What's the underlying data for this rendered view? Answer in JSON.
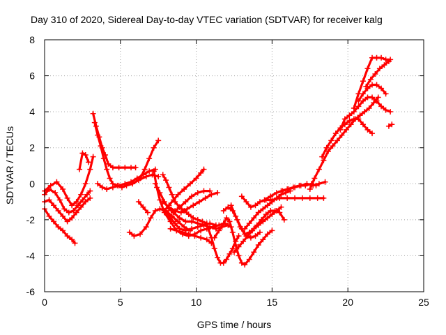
{
  "chart_data": {
    "type": "scatter",
    "title": "Day 310 of 2020, Sidereal Day-to-day VTEC variation (SDTVAR) for receiver kalg",
    "xlabel": "GPS time / hours",
    "ylabel": "SDTVAR / TECUs",
    "xlim": [
      0,
      25
    ],
    "ylim": [
      -6,
      8
    ],
    "xticks": [
      "0",
      "5",
      "10",
      "15",
      "20",
      "25"
    ],
    "yticks": [
      "-6",
      "-4",
      "-2",
      "0",
      "2",
      "4",
      "6",
      "8"
    ],
    "grid": true,
    "marker": "plus",
    "series_color": "#ff0000",
    "tracks": [
      [
        [
          0.0,
          -0.4
        ],
        [
          0.4,
          -0.1
        ],
        [
          0.8,
          0.1
        ],
        [
          1.2,
          -0.3
        ],
        [
          1.5,
          -0.8
        ],
        [
          1.8,
          -1.2
        ],
        [
          2.1,
          -1.0
        ],
        [
          2.4,
          -0.6
        ],
        [
          2.7,
          0.0
        ],
        [
          3.0,
          0.8
        ],
        [
          3.2,
          1.5
        ]
      ],
      [
        [
          0.0,
          -0.6
        ],
        [
          0.3,
          -0.3
        ],
        [
          0.7,
          -0.5
        ],
        [
          1.0,
          -0.9
        ],
        [
          1.3,
          -1.4
        ],
        [
          1.6,
          -1.6
        ],
        [
          1.9,
          -1.5
        ],
        [
          2.2,
          -1.2
        ],
        [
          2.5,
          -0.9
        ],
        [
          2.8,
          -0.6
        ],
        [
          3.0,
          -0.4
        ]
      ],
      [
        [
          0.0,
          -1.0
        ],
        [
          0.3,
          -0.9
        ],
        [
          0.6,
          -1.2
        ],
        [
          0.9,
          -1.5
        ],
        [
          1.2,
          -1.8
        ],
        [
          1.5,
          -2.1
        ],
        [
          1.8,
          -1.9
        ],
        [
          2.1,
          -1.6
        ],
        [
          2.4,
          -1.3
        ],
        [
          2.7,
          -1.0
        ],
        [
          3.0,
          -0.8
        ]
      ],
      [
        [
          0.0,
          -1.4
        ],
        [
          0.3,
          -1.8
        ],
        [
          0.6,
          -2.1
        ],
        [
          0.9,
          -2.4
        ],
        [
          1.2,
          -2.6
        ],
        [
          1.5,
          -2.9
        ],
        [
          1.8,
          -3.1
        ],
        [
          2.0,
          -3.3
        ]
      ],
      [
        [
          2.3,
          0.8
        ],
        [
          2.5,
          1.7
        ],
        [
          2.7,
          1.6
        ],
        [
          2.9,
          1.2
        ]
      ],
      [
        [
          3.2,
          3.9
        ],
        [
          3.4,
          3.2
        ],
        [
          3.6,
          2.6
        ],
        [
          3.8,
          2.0
        ],
        [
          4.0,
          1.6
        ],
        [
          4.2,
          1.1
        ],
        [
          4.5,
          0.9
        ],
        [
          4.9,
          0.9
        ],
        [
          5.3,
          0.9
        ],
        [
          5.7,
          0.9
        ],
        [
          6.0,
          0.9
        ]
      ],
      [
        [
          3.3,
          3.4
        ],
        [
          3.5,
          2.7
        ],
        [
          3.7,
          2.1
        ],
        [
          3.9,
          1.4
        ],
        [
          4.1,
          0.8
        ],
        [
          4.3,
          0.3
        ],
        [
          4.5,
          0.0
        ],
        [
          4.8,
          -0.1
        ],
        [
          5.1,
          -0.2
        ],
        [
          5.4,
          -0.1
        ],
        [
          5.8,
          0.0
        ],
        [
          6.2,
          0.2
        ],
        [
          6.7,
          0.4
        ],
        [
          7.1,
          0.5
        ],
        [
          7.5,
          0.4
        ]
      ],
      [
        [
          3.5,
          0.0
        ],
        [
          3.8,
          -0.2
        ],
        [
          4.1,
          -0.3
        ],
        [
          4.5,
          -0.2
        ],
        [
          4.9,
          -0.1
        ],
        [
          5.3,
          0.0
        ],
        [
          5.7,
          0.1
        ],
        [
          6.1,
          0.3
        ],
        [
          6.5,
          0.5
        ],
        [
          6.9,
          0.7
        ],
        [
          7.3,
          0.8
        ]
      ],
      [
        [
          5.6,
          -2.7
        ],
        [
          5.9,
          -2.9
        ],
        [
          6.3,
          -2.8
        ],
        [
          6.7,
          -2.4
        ],
        [
          7.0,
          -1.9
        ],
        [
          7.3,
          -1.5
        ],
        [
          7.6,
          -1.4
        ],
        [
          8.0,
          -1.5
        ],
        [
          8.4,
          -1.8
        ],
        [
          8.8,
          -2.1
        ],
        [
          9.2,
          -2.4
        ],
        [
          9.6,
          -2.6
        ]
      ],
      [
        [
          6.2,
          -1.0
        ],
        [
          6.5,
          -1.3
        ],
        [
          6.8,
          -1.6
        ]
      ],
      [
        [
          6.3,
          0.3
        ],
        [
          6.6,
          0.8
        ],
        [
          6.9,
          1.4
        ],
        [
          7.2,
          2.0
        ],
        [
          7.5,
          2.4
        ]
      ],
      [
        [
          7.2,
          0.7
        ],
        [
          7.4,
          -0.2
        ],
        [
          7.6,
          -0.9
        ],
        [
          7.9,
          -1.6
        ],
        [
          8.3,
          -2.1
        ],
        [
          8.7,
          -2.6
        ],
        [
          9.1,
          -2.8
        ],
        [
          9.5,
          -2.9
        ],
        [
          9.9,
          -2.8
        ],
        [
          10.3,
          -2.6
        ],
        [
          10.7,
          -2.5
        ],
        [
          11.1,
          -2.4
        ],
        [
          11.5,
          -2.3
        ],
        [
          11.9,
          -2.2
        ],
        [
          12.3,
          -2.4
        ]
      ],
      [
        [
          7.3,
          0.0
        ],
        [
          7.6,
          -0.5
        ],
        [
          7.9,
          -1.0
        ],
        [
          8.2,
          -1.4
        ],
        [
          8.5,
          -1.6
        ],
        [
          8.9,
          -1.9
        ],
        [
          9.3,
          -2.1
        ],
        [
          9.7,
          -2.1
        ],
        [
          10.1,
          -2.2
        ],
        [
          10.5,
          -2.3
        ],
        [
          10.9,
          -2.4
        ],
        [
          11.3,
          -2.5
        ],
        [
          11.7,
          -2.4
        ],
        [
          12.1,
          -2.3
        ]
      ],
      [
        [
          7.8,
          0.5
        ],
        [
          8.0,
          0.2
        ],
        [
          8.2,
          -0.2
        ],
        [
          8.4,
          -0.6
        ],
        [
          8.6,
          -1.0
        ],
        [
          8.9,
          -1.3
        ],
        [
          9.2,
          -1.5
        ],
        [
          9.5,
          -1.7
        ],
        [
          9.8,
          -1.9
        ],
        [
          10.1,
          -2.0
        ],
        [
          10.4,
          -2.1
        ],
        [
          10.7,
          -2.2
        ]
      ],
      [
        [
          8.0,
          -1.5
        ],
        [
          8.3,
          -1.9
        ],
        [
          8.6,
          -2.2
        ],
        [
          8.9,
          -2.5
        ],
        [
          9.3,
          -2.6
        ],
        [
          9.7,
          -2.5
        ],
        [
          10.1,
          -2.4
        ],
        [
          10.5,
          -2.3
        ],
        [
          10.9,
          -2.2
        ],
        [
          11.3,
          -2.3
        ]
      ],
      [
        [
          7.9,
          -1.5
        ],
        [
          8.2,
          -1.2
        ],
        [
          8.5,
          -0.9
        ],
        [
          8.8,
          -0.6
        ],
        [
          9.2,
          -0.3
        ],
        [
          9.6,
          0.0
        ],
        [
          10.0,
          0.3
        ],
        [
          10.3,
          0.6
        ],
        [
          10.5,
          0.8
        ]
      ],
      [
        [
          7.8,
          -1.0
        ],
        [
          8.2,
          -1.3
        ],
        [
          8.6,
          -1.5
        ],
        [
          9.0,
          -1.6
        ],
        [
          9.4,
          -1.4
        ],
        [
          9.8,
          -1.2
        ],
        [
          10.2,
          -1.0
        ],
        [
          10.6,
          -0.8
        ],
        [
          11.0,
          -0.6
        ],
        [
          11.4,
          -0.5
        ]
      ],
      [
        [
          8.5,
          -1.6
        ],
        [
          8.9,
          -1.3
        ],
        [
          9.3,
          -1.0
        ],
        [
          9.7,
          -0.7
        ],
        [
          10.1,
          -0.5
        ],
        [
          10.5,
          -0.4
        ],
        [
          10.9,
          -0.4
        ]
      ],
      [
        [
          8.3,
          -2.5
        ],
        [
          8.7,
          -2.6
        ],
        [
          9.1,
          -2.7
        ],
        [
          9.5,
          -2.8
        ],
        [
          9.9,
          -2.9
        ],
        [
          10.3,
          -3.0
        ],
        [
          10.7,
          -3.1
        ],
        [
          11.0,
          -3.3
        ]
      ],
      [
        [
          10.8,
          -2.5
        ],
        [
          11.0,
          -3.0
        ],
        [
          11.2,
          -3.6
        ],
        [
          11.4,
          -4.1
        ],
        [
          11.6,
          -4.4
        ],
        [
          11.8,
          -4.4
        ],
        [
          12.0,
          -4.2
        ],
        [
          12.2,
          -3.9
        ],
        [
          12.4,
          -3.6
        ],
        [
          12.6,
          -3.2
        ],
        [
          12.8,
          -2.9
        ]
      ],
      [
        [
          11.8,
          -1.5
        ],
        [
          12.1,
          -1.3
        ],
        [
          12.4,
          -1.5
        ],
        [
          12.7,
          -2.0
        ],
        [
          13.0,
          -2.5
        ],
        [
          13.3,
          -2.9
        ],
        [
          13.6,
          -3.0
        ],
        [
          13.9,
          -2.9
        ],
        [
          14.2,
          -2.7
        ]
      ],
      [
        [
          11.2,
          -3.0
        ],
        [
          11.5,
          -2.6
        ],
        [
          11.8,
          -2.2
        ],
        [
          12.0,
          -1.9
        ],
        [
          12.2,
          -2.1
        ],
        [
          12.4,
          -2.7
        ],
        [
          12.6,
          -3.4
        ],
        [
          12.8,
          -4.0
        ],
        [
          13.0,
          -4.4
        ],
        [
          13.2,
          -4.5
        ],
        [
          13.5,
          -4.2
        ],
        [
          13.8,
          -3.8
        ],
        [
          14.1,
          -3.4
        ],
        [
          14.4,
          -3.1
        ],
        [
          14.7,
          -2.8
        ],
        [
          15.0,
          -2.6
        ]
      ],
      [
        [
          12.3,
          -1.2
        ],
        [
          12.6,
          -1.8
        ],
        [
          12.9,
          -2.4
        ],
        [
          13.2,
          -2.8
        ],
        [
          13.5,
          -2.7
        ],
        [
          13.8,
          -2.5
        ],
        [
          14.1,
          -2.3
        ],
        [
          14.4,
          -2.1
        ],
        [
          14.7,
          -1.9
        ],
        [
          15.0,
          -1.7
        ],
        [
          15.3,
          -1.5
        ],
        [
          15.6,
          -1.3
        ]
      ],
      [
        [
          12.5,
          -3.8
        ],
        [
          12.8,
          -3.5
        ],
        [
          13.1,
          -3.2
        ],
        [
          13.4,
          -2.9
        ],
        [
          13.7,
          -2.6
        ],
        [
          14.0,
          -2.3
        ],
        [
          14.3,
          -2.0
        ],
        [
          14.6,
          -1.7
        ],
        [
          14.9,
          -1.5
        ],
        [
          15.2,
          -1.5
        ],
        [
          15.5,
          -1.6
        ],
        [
          15.8,
          -2.0
        ]
      ],
      [
        [
          13.2,
          -2.5
        ],
        [
          13.5,
          -2.2
        ],
        [
          13.8,
          -1.9
        ],
        [
          14.1,
          -1.6
        ],
        [
          14.4,
          -1.4
        ],
        [
          14.7,
          -1.2
        ],
        [
          15.0,
          -1.0
        ],
        [
          15.3,
          -0.8
        ],
        [
          15.6,
          -0.6
        ],
        [
          15.9,
          -0.5
        ],
        [
          16.2,
          -0.4
        ]
      ],
      [
        [
          13.0,
          -0.7
        ],
        [
          13.3,
          -1.0
        ],
        [
          13.6,
          -1.3
        ],
        [
          13.9,
          -1.2
        ],
        [
          14.2,
          -1.0
        ],
        [
          14.6,
          -0.9
        ],
        [
          15.0,
          -0.9
        ],
        [
          15.5,
          -0.8
        ],
        [
          16.0,
          -0.8
        ],
        [
          16.5,
          -0.8
        ],
        [
          17.0,
          -0.8
        ],
        [
          17.5,
          -0.8
        ],
        [
          18.0,
          -0.8
        ],
        [
          18.4,
          -0.8
        ]
      ],
      [
        [
          14.5,
          -0.9
        ],
        [
          14.9,
          -0.7
        ],
        [
          15.3,
          -0.5
        ],
        [
          15.7,
          -0.4
        ],
        [
          16.1,
          -0.3
        ],
        [
          16.5,
          -0.2
        ],
        [
          16.9,
          -0.1
        ],
        [
          17.3,
          0.0
        ],
        [
          17.7,
          -0.1
        ],
        [
          18.1,
          0.0
        ],
        [
          18.5,
          0.1
        ]
      ],
      [
        [
          15.6,
          -0.4
        ],
        [
          16.0,
          -0.3
        ],
        [
          16.4,
          -0.2
        ],
        [
          16.8,
          -0.1
        ],
        [
          17.2,
          -0.1
        ],
        [
          17.6,
          0.0
        ],
        [
          17.9,
          -0.1
        ]
      ],
      [
        [
          17.5,
          -0.3
        ],
        [
          17.8,
          0.3
        ],
        [
          18.1,
          0.8
        ],
        [
          18.4,
          1.3
        ],
        [
          18.7,
          1.8
        ],
        [
          19.0,
          2.1
        ],
        [
          19.3,
          2.4
        ],
        [
          19.6,
          2.7
        ],
        [
          19.9,
          3.0
        ],
        [
          20.2,
          3.3
        ],
        [
          20.5,
          3.6
        ],
        [
          20.8,
          3.8
        ],
        [
          21.1,
          4.0
        ],
        [
          21.4,
          4.2
        ],
        [
          21.7,
          4.5
        ],
        [
          22.0,
          4.8
        ]
      ],
      [
        [
          18.3,
          1.5
        ],
        [
          18.6,
          2.0
        ],
        [
          18.9,
          2.4
        ],
        [
          19.2,
          2.8
        ],
        [
          19.5,
          3.1
        ],
        [
          19.8,
          3.3
        ],
        [
          20.1,
          3.5
        ],
        [
          20.4,
          3.6
        ],
        [
          20.7,
          3.6
        ],
        [
          21.0,
          3.3
        ],
        [
          21.3,
          3.0
        ],
        [
          21.6,
          2.8
        ]
      ],
      [
        [
          19.5,
          3.0
        ],
        [
          19.8,
          3.6
        ],
        [
          20.1,
          3.8
        ],
        [
          20.4,
          4.0
        ],
        [
          20.7,
          4.3
        ],
        [
          21.0,
          4.6
        ],
        [
          21.3,
          4.8
        ],
        [
          21.6,
          4.8
        ],
        [
          21.9,
          4.6
        ],
        [
          22.2,
          4.3
        ],
        [
          22.5,
          4.1
        ],
        [
          22.8,
          4.0
        ]
      ],
      [
        [
          20.7,
          4.6
        ],
        [
          21.0,
          5.0
        ],
        [
          21.3,
          5.3
        ],
        [
          21.6,
          5.5
        ],
        [
          21.9,
          5.5
        ],
        [
          22.2,
          5.3
        ],
        [
          22.5,
          5.0
        ]
      ],
      [
        [
          20.4,
          4.2
        ],
        [
          20.7,
          5.0
        ],
        [
          21.0,
          5.7
        ],
        [
          21.3,
          6.4
        ],
        [
          21.6,
          7.0
        ],
        [
          21.9,
          7.0
        ],
        [
          22.2,
          7.0
        ],
        [
          22.5,
          6.9
        ],
        [
          22.8,
          6.9
        ]
      ],
      [
        [
          21.2,
          5.4
        ],
        [
          21.5,
          5.8
        ],
        [
          21.8,
          6.1
        ],
        [
          22.1,
          6.4
        ],
        [
          22.4,
          6.6
        ],
        [
          22.7,
          6.8
        ]
      ],
      [
        [
          22.7,
          3.2
        ],
        [
          22.9,
          3.3
        ]
      ]
    ]
  }
}
